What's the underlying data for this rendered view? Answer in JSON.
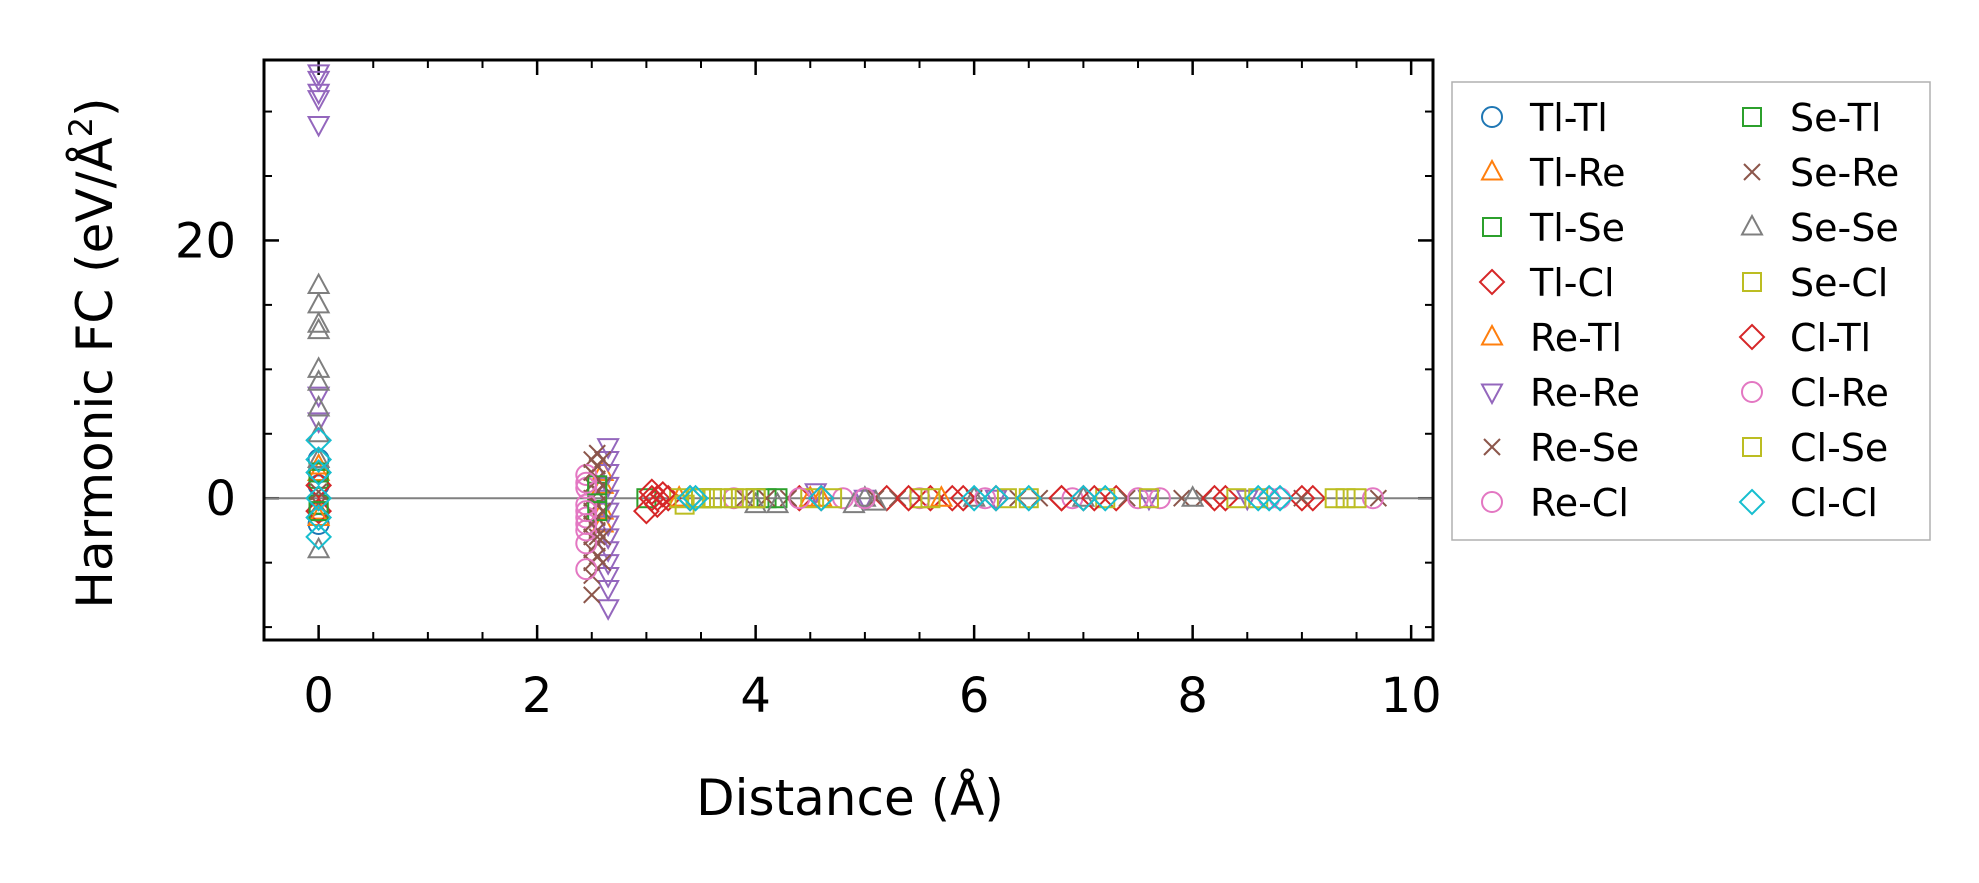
{
  "chart_data": {
    "type": "scatter",
    "title": "",
    "xlabel": "Distance (Å)",
    "ylabel_main": "Harmonic FC (eV/Å",
    "ylabel_sup": "2",
    "ylabel_end": ")",
    "xlim": [
      -0.5,
      10.2
    ],
    "ylim": [
      -11,
      34
    ],
    "x_ticks": [
      0,
      2,
      4,
      6,
      8,
      10
    ],
    "x_tick_labels": [
      "0",
      "2",
      "4",
      "6",
      "8",
      "10"
    ],
    "y_ticks": [
      0,
      20
    ],
    "y_tick_labels": [
      "0",
      "20"
    ],
    "x_minor_step": 0.5,
    "y_minor_step": 5,
    "zero_line": true,
    "legend_position": "outside-right",
    "series": [
      {
        "name": "Tl-Tl",
        "marker": "circle",
        "color": "#1f77b4",
        "points": [
          [
            0,
            3
          ],
          [
            0,
            1
          ],
          [
            0,
            -1
          ],
          [
            0,
            -2
          ],
          [
            0,
            2
          ]
        ]
      },
      {
        "name": "Tl-Re",
        "marker": "triangle-up",
        "color": "#ff7f0e",
        "points": [
          [
            0,
            2
          ],
          [
            0,
            -1
          ],
          [
            2.6,
            1
          ],
          [
            2.6,
            -1
          ],
          [
            3.3,
            0
          ],
          [
            4.6,
            0
          ]
        ]
      },
      {
        "name": "Tl-Se",
        "marker": "square",
        "color": "#2ca02c",
        "points": [
          [
            0,
            1.5
          ],
          [
            0,
            -0.5
          ],
          [
            2.55,
            0.5
          ],
          [
            3.0,
            0
          ],
          [
            3.5,
            0
          ],
          [
            4.1,
            0
          ]
        ]
      },
      {
        "name": "Tl-Cl",
        "marker": "diamond",
        "color": "#d62728",
        "points": [
          [
            0,
            1
          ],
          [
            0,
            -1
          ],
          [
            3.0,
            -1
          ],
          [
            3.05,
            0.5
          ],
          [
            3.1,
            0
          ],
          [
            3.2,
            0
          ],
          [
            3.4,
            0
          ],
          [
            4.4,
            0
          ],
          [
            5.2,
            0
          ],
          [
            5.6,
            0
          ],
          [
            5.8,
            0
          ],
          [
            6.2,
            0
          ],
          [
            6.8,
            0
          ],
          [
            7.0,
            0
          ],
          [
            7.3,
            0
          ],
          [
            8.3,
            0
          ],
          [
            9.1,
            0
          ]
        ]
      },
      {
        "name": "Re-Tl",
        "marker": "triangle-up",
        "color": "#ff7f0e",
        "points": [
          [
            0,
            2.5
          ],
          [
            0,
            -1.5
          ],
          [
            2.6,
            2
          ],
          [
            2.6,
            -2
          ],
          [
            3.3,
            0
          ],
          [
            4.5,
            0
          ],
          [
            5.7,
            0
          ]
        ]
      },
      {
        "name": "Re-Re",
        "marker": "triangle-down",
        "color": "#9467bd",
        "points": [
          [
            0,
            33
          ],
          [
            0,
            32.5
          ],
          [
            0,
            31.5
          ],
          [
            0,
            31
          ],
          [
            0,
            29
          ],
          [
            0,
            8
          ],
          [
            0,
            6
          ],
          [
            2.65,
            4
          ],
          [
            2.65,
            3
          ],
          [
            2.65,
            2
          ],
          [
            2.65,
            1
          ],
          [
            2.65,
            0
          ],
          [
            2.65,
            -1
          ],
          [
            2.65,
            -2
          ],
          [
            2.65,
            -3
          ],
          [
            2.65,
            -4
          ],
          [
            2.65,
            -5
          ],
          [
            2.65,
            -6
          ],
          [
            2.65,
            -7
          ],
          [
            2.65,
            -8.5
          ],
          [
            4.55,
            0.5
          ],
          [
            5.0,
            0
          ],
          [
            6.2,
            0
          ],
          [
            7.6,
            0
          ],
          [
            8.5,
            0
          ]
        ]
      },
      {
        "name": "Re-Se",
        "marker": "x",
        "color": "#8c564b",
        "points": [
          [
            0,
            0.5
          ],
          [
            0,
            -0.5
          ],
          [
            2.5,
            3
          ],
          [
            2.5,
            2
          ],
          [
            2.5,
            1
          ],
          [
            2.5,
            0
          ],
          [
            2.5,
            -1
          ],
          [
            2.5,
            -2
          ],
          [
            2.5,
            -3
          ],
          [
            2.5,
            -4
          ],
          [
            2.5,
            -5
          ],
          [
            2.5,
            -6
          ],
          [
            2.5,
            -7.5
          ],
          [
            2.55,
            2.5
          ],
          [
            2.55,
            1.5
          ],
          [
            2.55,
            0.5
          ],
          [
            2.55,
            -0.5
          ],
          [
            2.55,
            -1.5
          ],
          [
            2.55,
            -2.5
          ],
          [
            2.55,
            -3.5
          ],
          [
            2.55,
            -4.5
          ],
          [
            2.6,
            3
          ],
          [
            2.6,
            1
          ],
          [
            2.6,
            -1
          ],
          [
            2.6,
            -3
          ],
          [
            2.6,
            -5
          ],
          [
            3.9,
            0
          ],
          [
            4.3,
            0
          ],
          [
            5.1,
            0
          ],
          [
            6.0,
            0
          ],
          [
            6.6,
            0
          ],
          [
            7.4,
            0
          ],
          [
            8.1,
            0
          ],
          [
            9.0,
            0
          ],
          [
            9.7,
            0
          ]
        ]
      },
      {
        "name": "Re-Cl",
        "marker": "circle",
        "color": "#e377c2",
        "points": [
          [
            2.45,
            1.8
          ],
          [
            2.45,
            0.8
          ],
          [
            2.45,
            -0.5
          ],
          [
            2.45,
            -1.5
          ],
          [
            2.45,
            -2.5
          ],
          [
            2.45,
            -3.5
          ],
          [
            2.45,
            -5.5
          ],
          [
            3.8,
            0
          ],
          [
            4.8,
            0
          ],
          [
            5.5,
            0
          ],
          [
            6.9,
            0
          ],
          [
            7.7,
            0
          ],
          [
            8.8,
            0
          ],
          [
            9.65,
            0
          ]
        ]
      },
      {
        "name": "Se-Tl",
        "marker": "square",
        "color": "#2ca02c",
        "points": [
          [
            0,
            2
          ],
          [
            0,
            -1
          ],
          [
            2.55,
            1
          ],
          [
            2.55,
            -1
          ],
          [
            3.6,
            0
          ],
          [
            4.0,
            0
          ],
          [
            4.2,
            0
          ]
        ]
      },
      {
        "name": "Se-Re",
        "marker": "x",
        "color": "#8c564b",
        "points": [
          [
            2.5,
            2
          ],
          [
            2.5,
            -2
          ],
          [
            2.55,
            3.5
          ],
          [
            2.55,
            -3
          ],
          [
            4.1,
            0
          ],
          [
            5.3,
            0
          ],
          [
            6.4,
            0
          ],
          [
            7.9,
            0
          ]
        ]
      },
      {
        "name": "Se-Se",
        "marker": "triangle-up",
        "color": "#7f7f7f",
        "points": [
          [
            0,
            16.5
          ],
          [
            0,
            15
          ],
          [
            0,
            13.5
          ],
          [
            0,
            13
          ],
          [
            0,
            10
          ],
          [
            0,
            9
          ],
          [
            0,
            7
          ],
          [
            0,
            5
          ],
          [
            0,
            3
          ],
          [
            0,
            -4
          ],
          [
            4.0,
            -0.5
          ],
          [
            4.2,
            -0.5
          ],
          [
            4.9,
            -0.5
          ],
          [
            5.0,
            0
          ],
          [
            5.1,
            -0.3
          ],
          [
            6.0,
            0
          ],
          [
            7.0,
            0
          ],
          [
            8.0,
            0
          ]
        ]
      },
      {
        "name": "Se-Cl",
        "marker": "square",
        "color": "#bcbd22",
        "points": [
          [
            3.3,
            0
          ],
          [
            3.5,
            0
          ],
          [
            3.6,
            0
          ],
          [
            3.8,
            0
          ],
          [
            4.0,
            0
          ],
          [
            4.5,
            0
          ],
          [
            5.5,
            0
          ],
          [
            6.3,
            0
          ],
          [
            7.2,
            0
          ],
          [
            8.4,
            0
          ],
          [
            9.3,
            0
          ],
          [
            9.5,
            0
          ]
        ]
      },
      {
        "name": "Cl-Tl",
        "marker": "diamond",
        "color": "#d62728",
        "points": [
          [
            3.05,
            0
          ],
          [
            3.1,
            -0.5
          ],
          [
            3.15,
            0.3
          ],
          [
            4.6,
            0
          ],
          [
            5.4,
            0
          ],
          [
            5.9,
            0
          ],
          [
            6.8,
            0
          ],
          [
            7.1,
            0
          ],
          [
            8.2,
            0
          ],
          [
            9.0,
            0
          ]
        ]
      },
      {
        "name": "Cl-Re",
        "marker": "circle",
        "color": "#e377c2",
        "points": [
          [
            2.45,
            1.2
          ],
          [
            2.45,
            -1
          ],
          [
            2.45,
            -2
          ],
          [
            4.4,
            0
          ],
          [
            5.0,
            0
          ],
          [
            6.1,
            0
          ],
          [
            7.5,
            0
          ],
          [
            8.7,
            0
          ]
        ]
      },
      {
        "name": "Cl-Se",
        "marker": "square",
        "color": "#bcbd22",
        "points": [
          [
            3.35,
            -0.5
          ],
          [
            3.45,
            0
          ],
          [
            3.7,
            0
          ],
          [
            3.9,
            0
          ],
          [
            4.7,
            0
          ],
          [
            5.6,
            0
          ],
          [
            6.5,
            0
          ],
          [
            7.6,
            0
          ],
          [
            8.6,
            0
          ],
          [
            9.4,
            0
          ]
        ]
      },
      {
        "name": "Cl-Cl",
        "marker": "diamond",
        "color": "#17becf",
        "points": [
          [
            0,
            4.5
          ],
          [
            0,
            3
          ],
          [
            0,
            2
          ],
          [
            0,
            0
          ],
          [
            0,
            -1.5
          ],
          [
            0,
            -3
          ],
          [
            3.4,
            0
          ],
          [
            3.45,
            0
          ],
          [
            4.6,
            0
          ],
          [
            6.0,
            0
          ],
          [
            6.2,
            0
          ],
          [
            6.5,
            0
          ],
          [
            7.0,
            0
          ],
          [
            7.2,
            0
          ],
          [
            8.6,
            0
          ],
          [
            8.7,
            0
          ],
          [
            8.8,
            0
          ]
        ]
      }
    ]
  }
}
